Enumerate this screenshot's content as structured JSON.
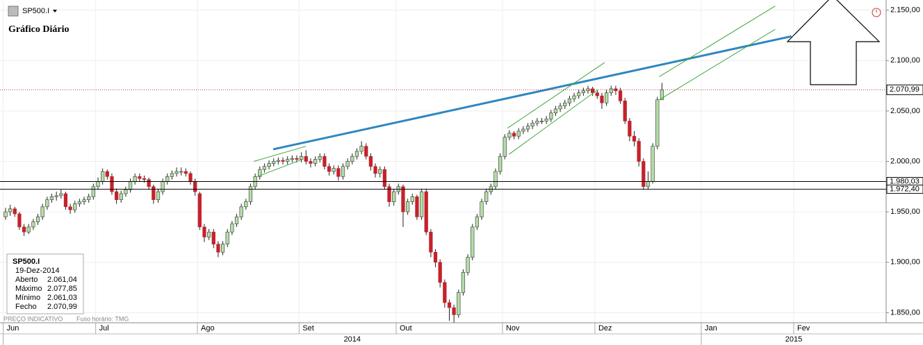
{
  "header": {
    "symbol": "SP500.I",
    "title": "Gráfico Diário"
  },
  "chart_data": {
    "type": "candlestick",
    "open": [
      1945,
      1950,
      1953,
      1948,
      1935,
      1930,
      1935,
      1940,
      1945,
      1955,
      1962,
      1965,
      1966,
      1968,
      1955,
      1952,
      1958,
      1960,
      1962,
      1965,
      1975,
      1980,
      1990,
      1985,
      1970,
      1962,
      1968,
      1972,
      1980,
      1985,
      1983,
      1982,
      1975,
      1962,
      1970,
      1980,
      1985,
      1988,
      1990,
      1990,
      1988,
      1980,
      1968,
      1935,
      1925,
      1930,
      1918,
      1910,
      1918,
      1930,
      1938,
      1945,
      1955,
      1960,
      1975,
      1985,
      1992,
      1995,
      1998,
      2000,
      2001,
      2000,
      2002,
      2003,
      2002,
      2005,
      2000,
      1998,
      2002,
      2005,
      1995,
      1990,
      1993,
      1985,
      1995,
      2000,
      2005,
      2010,
      2015,
      2005,
      1995,
      1988,
      1992,
      1975,
      1960,
      1970,
      1975,
      1950,
      1960,
      1965,
      1945,
      1970,
      1930,
      1910,
      1900,
      1880,
      1860,
      1855,
      1848,
      1870,
      1890,
      1905,
      1935,
      1945,
      1960,
      1970,
      1975,
      1990,
      2005,
      2024,
      2028,
      2025,
      2030,
      2032,
      2035,
      2038,
      2040,
      2040,
      2042,
      2048,
      2052,
      2055,
      2058,
      2062,
      2065,
      2068,
      2070,
      2072,
      2068,
      2065,
      2058,
      2068,
      2072,
      2070,
      2060,
      2040,
      2025,
      2020,
      2000,
      1975,
      1980,
      2015,
      2061.04
    ],
    "high": [
      1954,
      1957,
      1955,
      1950,
      1938,
      1938,
      1943,
      1948,
      1958,
      1965,
      1968,
      1970,
      1972,
      1970,
      1958,
      1961,
      1963,
      1965,
      1968,
      1978,
      1984,
      1993,
      1992,
      1988,
      1973,
      1971,
      1975,
      1983,
      1988,
      1988,
      1986,
      1984,
      1977,
      1973,
      1983,
      1988,
      1991,
      1994,
      1994,
      1993,
      1990,
      1983,
      1970,
      1938,
      1933,
      1933,
      1921,
      1921,
      1933,
      1941,
      1948,
      1958,
      1963,
      1978,
      1988,
      1995,
      1998,
      2001,
      2003,
      2004,
      2004,
      2005,
      2006,
      2006,
      2009,
      2011,
      2003,
      2005,
      2008,
      2008,
      1998,
      1996,
      1996,
      1998,
      2003,
      2008,
      2013,
      2020,
      2018,
      2008,
      1998,
      1995,
      1995,
      1978,
      1973,
      1978,
      1977,
      1963,
      1968,
      1967,
      1973,
      1973,
      1933,
      1913,
      1903,
      1883,
      1863,
      1858,
      1873,
      1893,
      1908,
      1938,
      1948,
      1963,
      1973,
      1978,
      1993,
      2008,
      2027,
      2031,
      2030,
      2033,
      2035,
      2038,
      2041,
      2043,
      2043,
      2045,
      2051,
      2055,
      2058,
      2061,
      2065,
      2068,
      2071,
      2073,
      2075,
      2074,
      2071,
      2068,
      2071,
      2075,
      2075,
      2073,
      2063,
      2043,
      2030,
      2023,
      2003,
      1990,
      2018,
      2064,
      2077.85
    ],
    "low": [
      1942,
      1946,
      1945,
      1932,
      1926,
      1928,
      1932,
      1937,
      1942,
      1952,
      1959,
      1961,
      1963,
      1952,
      1948,
      1949,
      1955,
      1957,
      1959,
      1962,
      1972,
      1977,
      1982,
      1967,
      1958,
      1959,
      1965,
      1969,
      1977,
      1980,
      1979,
      1972,
      1958,
      1959,
      1967,
      1977,
      1982,
      1985,
      1986,
      1985,
      1977,
      1966,
      1932,
      1920,
      1922,
      1914,
      1905,
      1907,
      1915,
      1927,
      1935,
      1942,
      1952,
      1957,
      1972,
      1982,
      1989,
      1992,
      1995,
      1997,
      1997,
      1997,
      1999,
      1999,
      1999,
      1997,
      1994,
      1995,
      1999,
      1992,
      1986,
      1987,
      1981,
      1982,
      1992,
      1997,
      2002,
      2007,
      2002,
      1991,
      1984,
      1984,
      1972,
      1955,
      1956,
      1967,
      1935,
      1947,
      1957,
      1942,
      1942,
      1927,
      1905,
      1895,
      1875,
      1855,
      1842,
      1840,
      1845,
      1867,
      1887,
      1902,
      1932,
      1942,
      1957,
      1967,
      1972,
      1987,
      2002,
      2021,
      2022,
      2022,
      2027,
      2029,
      2032,
      2035,
      2037,
      2037,
      2039,
      2045,
      2049,
      2052,
      2055,
      2059,
      2062,
      2065,
      2067,
      2065,
      2062,
      2052,
      2055,
      2065,
      2066,
      2057,
      2037,
      2020,
      2015,
      1995,
      1972,
      1972,
      1978,
      2012,
      2061.03
    ],
    "close": [
      1950,
      1953,
      1948,
      1935,
      1930,
      1935,
      1940,
      1945,
      1955,
      1962,
      1965,
      1966,
      1968,
      1955,
      1952,
      1958,
      1960,
      1962,
      1965,
      1975,
      1980,
      1990,
      1985,
      1970,
      1962,
      1968,
      1972,
      1980,
      1985,
      1983,
      1982,
      1975,
      1962,
      1970,
      1980,
      1985,
      1988,
      1990,
      1990,
      1988,
      1980,
      1970,
      1935,
      1925,
      1930,
      1918,
      1910,
      1918,
      1930,
      1938,
      1945,
      1955,
      1960,
      1975,
      1985,
      1992,
      1995,
      1998,
      2000,
      2001,
      2000,
      2002,
      2003,
      2002,
      2005,
      2000,
      1998,
      2002,
      2005,
      1995,
      1990,
      1993,
      1985,
      1995,
      2000,
      2005,
      2010,
      2015,
      2005,
      1995,
      1988,
      1992,
      1975,
      1960,
      1970,
      1975,
      1950,
      1960,
      1965,
      1945,
      1970,
      1930,
      1910,
      1900,
      1880,
      1860,
      1855,
      1848,
      1870,
      1890,
      1905,
      1935,
      1945,
      1960,
      1970,
      1975,
      1990,
      2005,
      2024,
      2028,
      2025,
      2030,
      2032,
      2035,
      2038,
      2040,
      2040,
      2042,
      2048,
      2052,
      2055,
      2058,
      2062,
      2065,
      2068,
      2070,
      2072,
      2068,
      2065,
      2058,
      2068,
      2072,
      2070,
      2060,
      2040,
      2025,
      2020,
      2000,
      1975,
      1980,
      2015,
      2061,
      2070.99
    ],
    "up_color": "#b3dea6",
    "down_color": "#c4222b",
    "ylim": [
      1840,
      2160
    ],
    "yticks": [
      {
        "value": 1850,
        "label": "1.850,00"
      },
      {
        "value": 1900,
        "label": "1.900,00"
      },
      {
        "value": 1950,
        "label": "1.950,00"
      },
      {
        "value": 2000,
        "label": "2.000,00"
      },
      {
        "value": 2050,
        "label": "2.050,00"
      },
      {
        "value": 2100,
        "label": "2.100,00"
      },
      {
        "value": 2150,
        "label": "2.150,00"
      }
    ],
    "xlim": [
      -1.2,
      190.5
    ],
    "xticks": [
      {
        "value": -0.5,
        "label": "Jun"
      },
      {
        "value": 19.5,
        "label": "Jul"
      },
      {
        "value": 41.5,
        "label": "Ago"
      },
      {
        "value": 63.5,
        "label": "Set"
      },
      {
        "value": 84.5,
        "label": "Out"
      },
      {
        "value": 107.5,
        "label": "Nov"
      },
      {
        "value": 127.5,
        "label": "Dez"
      },
      {
        "value": 150.5,
        "label": "Jan"
      },
      {
        "value": 170.5,
        "label": "Fev"
      }
    ],
    "years": [
      {
        "value": -0.5,
        "label": "2014"
      },
      {
        "value": 150.5,
        "label": "2015"
      }
    ],
    "grid": true,
    "levels": [
      {
        "value": 1980.03,
        "label": "1.980,03"
      },
      {
        "value": 1972.4,
        "label": "1.972,40"
      }
    ],
    "last_price": {
      "value": 2070.99,
      "label": "2.070,99",
      "color": "#c0392b"
    },
    "trendlines": [
      {
        "color": "#2e86c1",
        "x": [
          57.9,
          170
        ],
        "y": [
          2012,
          2124
        ]
      },
      {
        "color": "#3aa63a",
        "x": [
          53.7,
          65
        ],
        "y": [
          2000,
          2015
        ]
      },
      {
        "color": "#3aa63a",
        "x": [
          54.5,
          64.2
        ],
        "y": [
          1985,
          2002
        ]
      },
      {
        "color": "#3aa63a",
        "x": [
          108.6,
          129.6
        ],
        "y": [
          2033,
          2098
        ]
      },
      {
        "color": "#3aa63a",
        "x": [
          108.9,
          127.8
        ],
        "y": [
          2007,
          2070
        ]
      },
      {
        "color": "#3aa63a",
        "x": [
          141.4,
          166.5
        ],
        "y": [
          2084,
          2154
        ]
      },
      {
        "color": "#3aa63a",
        "x": [
          141.4,
          166.5
        ],
        "y": [
          2061,
          2131
        ]
      }
    ],
    "info": {
      "symbol": "SP500.I",
      "date": "19-Dez-2014",
      "labels": [
        "Aberto",
        "Máximo",
        "Mínimo",
        "Fecho"
      ],
      "values": [
        2061.04,
        2077.85,
        2061.03,
        2070.99
      ],
      "value_labels": [
        "2.061,04",
        "2.077,85",
        "2.061,03",
        "2.070,99"
      ]
    },
    "footer": "PREÇO INDICATIVO",
    "timezone": "Fuso horário: TMG"
  }
}
